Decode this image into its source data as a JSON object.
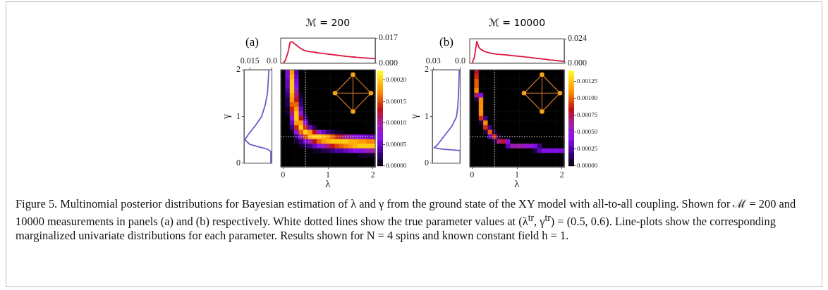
{
  "chart_data": [
    {
      "type": "line",
      "title": "ℳ = 200",
      "annotations": [
        "(a)"
      ],
      "tick_labels": "y",
      "ylim": [
        0,
        0.017
      ],
      "yticks": [
        {
          "value": 0,
          "label": "0.000"
        },
        {
          "value": 0.017,
          "label": "0.017"
        }
      ],
      "categories": [
        null,
        null,
        null,
        null,
        null,
        null,
        null,
        null,
        null,
        null,
        null,
        null,
        null,
        null,
        null,
        null,
        null,
        null,
        null,
        null,
        null,
        null,
        null,
        null,
        null,
        null,
        null,
        null,
        null,
        null,
        null,
        null,
        null,
        null,
        null,
        null,
        null,
        null,
        null,
        null,
        null
      ],
      "series": [
        {
          "color": "#e0143c",
          "values": [
            0,
            0,
            0.002,
            0.0068,
            0.0142,
            0.0145,
            0.013,
            0.0118,
            0.0105,
            0.0095,
            0.0087,
            0.0083,
            0.008,
            0.0077,
            0.0075,
            0.0073,
            0.007,
            0.0068,
            0.0066,
            0.0064,
            0.0062,
            0.006,
            0.0058,
            0.0056,
            0.0054,
            0.0052,
            0.005,
            0.0048,
            0.0046,
            0.0045,
            0.0043,
            0.0042,
            0.004,
            0.0039,
            0.0038,
            0.0036,
            0.0035,
            0.0034,
            0.0033,
            0.0032,
            0.0031
          ]
        }
      ]
    },
    {
      "type": "line",
      "ylabel": "γ",
      "xlim": [
        0.019,
        0
      ],
      "xticks": [
        {
          "value": 0.015,
          "label": "0.015"
        },
        {
          "value": 0,
          "label": "0.0"
        }
      ],
      "ylim": [
        0,
        2
      ],
      "yticks": [
        0,
        1,
        2
      ],
      "series": [
        {
          "color": "#6a5acd",
          "x": [
            0.0003,
            0.0007,
            0.003,
            0.009,
            0.015,
            0.0183,
            0.0164,
            0.0114,
            0.007,
            0.0045,
            0.003,
            0.002
          ],
          "values": [
            0,
            0.25,
            0.3,
            0.35,
            0.4,
            0.5,
            0.6,
            0.8,
            1,
            1.25,
            1.5,
            2
          ]
        }
      ]
    },
    {
      "type": "heatmap",
      "xlabel": "λ",
      "tick_labels": "x",
      "clim": [
        0,
        0.000222
      ],
      "cticks": [
        {
          "value": 0,
          "label": "0.00000"
        },
        {
          "value": 5e-05,
          "label": "0.00005"
        },
        {
          "value": 0.0001,
          "label": "0.00010"
        },
        {
          "value": 0.00015,
          "label": "0.00015"
        },
        {
          "value": 0.0002,
          "label": "0.00020"
        }
      ],
      "categories": [
        "0",
        null,
        null,
        null,
        null,
        null,
        null,
        null,
        null,
        null,
        "1",
        null,
        null,
        null,
        null,
        null,
        null,
        null,
        null,
        null,
        "2"
      ],
      "y_categories": [
        null,
        null,
        null,
        null,
        null,
        null,
        null,
        null,
        null,
        null,
        null,
        null,
        null,
        null,
        null,
        null,
        null,
        null,
        null,
        null,
        null
      ],
      "cells": [
        [
          0,
          6e-05,
          0.00018,
          4e-05,
          0,
          0,
          0,
          0,
          0,
          0,
          0,
          0,
          0,
          0,
          0,
          0,
          0,
          0,
          0,
          0,
          0
        ],
        [
          0,
          6e-05,
          0.00019,
          5e-05,
          0,
          0,
          0,
          0,
          0,
          0,
          0,
          0,
          0,
          0,
          0,
          0,
          0,
          0,
          0,
          0,
          0
        ],
        [
          0,
          5e-05,
          0.0002,
          6e-05,
          0,
          0,
          0,
          0,
          0,
          0,
          0,
          0,
          0,
          0,
          0,
          0,
          0,
          0,
          0,
          0,
          0
        ],
        [
          0,
          5e-05,
          0.0002,
          7e-05,
          0,
          0,
          0,
          0,
          0,
          0,
          0,
          0,
          0,
          0,
          0,
          0,
          0,
          0,
          0,
          0,
          0
        ],
        [
          0,
          4e-05,
          0.0002,
          9e-05,
          0,
          0,
          0,
          0,
          0,
          0,
          0,
          0,
          0,
          0,
          0,
          0,
          0,
          0,
          0,
          0,
          0
        ],
        [
          0,
          3e-05,
          0.00019,
          0.00011,
          1e-05,
          0,
          0,
          0,
          0,
          0,
          0,
          0,
          0,
          0,
          0,
          0,
          0,
          0,
          0,
          0,
          0
        ],
        [
          0,
          2e-05,
          0.00018,
          0.00013,
          2e-05,
          0,
          0,
          0,
          0,
          0,
          0,
          0,
          0,
          0,
          0,
          0,
          0,
          0,
          0,
          0,
          0
        ],
        [
          0,
          2e-05,
          0.00016,
          0.00016,
          3e-05,
          0,
          0,
          0,
          0,
          0,
          0,
          0,
          0,
          0,
          0,
          0,
          0,
          0,
          0,
          0,
          0
        ],
        [
          0,
          1e-05,
          0.00014,
          0.00018,
          5e-05,
          0,
          0,
          0,
          0,
          0,
          0,
          0,
          0,
          0,
          0,
          0,
          0,
          0,
          0,
          0,
          0
        ],
        [
          0,
          1e-05,
          0.00011,
          0.0002,
          8e-05,
          1e-05,
          0,
          0,
          0,
          0,
          0,
          0,
          0,
          0,
          0,
          0,
          0,
          0,
          0,
          0,
          0
        ],
        [
          0,
          0,
          8e-05,
          0.0002,
          0.00013,
          3e-05,
          0,
          0,
          0,
          0,
          0,
          0,
          0,
          0,
          0,
          0,
          0,
          0,
          0,
          0,
          0
        ],
        [
          0,
          0,
          5e-05,
          0.00018,
          0.00018,
          7e-05,
          1e-05,
          0,
          0,
          0,
          0,
          0,
          0,
          0,
          0,
          0,
          0,
          0,
          0,
          0,
          0
        ],
        [
          0,
          0,
          3e-05,
          0.00014,
          0.0002,
          0.00014,
          5e-05,
          2e-05,
          0,
          0,
          0,
          0,
          0,
          0,
          0,
          0,
          0,
          0,
          0,
          0,
          0
        ],
        [
          0,
          0,
          1e-05,
          8e-05,
          0.00016,
          0.0002,
          0.00018,
          0.00013,
          8e-05,
          5e-05,
          3e-05,
          2e-05,
          1e-05,
          1e-05,
          0,
          0,
          0,
          0,
          0,
          0,
          0
        ],
        [
          0,
          0,
          0,
          3e-05,
          9e-05,
          0.00015,
          0.00019,
          0.0002,
          0.0002,
          0.00019,
          0.00018,
          0.00016,
          0.00014,
          0.00012,
          0.0001,
          9e-05,
          8e-05,
          7e-05,
          6e-05,
          5e-05,
          5e-05
        ],
        [
          0,
          0,
          0,
          1e-05,
          3e-05,
          6e-05,
          0.0001,
          0.00013,
          0.00016,
          0.00018,
          0.00019,
          0.0002,
          0.0002,
          0.0002,
          0.0002,
          0.00019,
          0.00019,
          0.00018,
          0.00018,
          0.00017,
          0.00017
        ],
        [
          0,
          0,
          0,
          0,
          1e-05,
          2e-05,
          3e-05,
          5e-05,
          7e-05,
          9e-05,
          0.00011,
          0.00013,
          0.00015,
          0.00016,
          0.00017,
          0.00018,
          0.00019,
          0.0002,
          0.0002,
          0.0002,
          0.0002
        ],
        [
          0,
          0,
          0,
          0,
          0,
          0,
          0,
          1e-05,
          1e-05,
          2e-05,
          2e-05,
          3e-05,
          4e-05,
          4e-05,
          5e-05,
          6e-05,
          7e-05,
          7e-05,
          8e-05,
          9e-05,
          0.0001
        ],
        [
          0,
          0,
          0,
          0,
          0,
          0,
          0,
          0,
          0,
          0,
          0,
          0,
          0,
          0,
          0,
          0,
          0,
          1e-05,
          1e-05,
          1e-05,
          1e-05
        ],
        [
          0,
          0,
          0,
          0,
          0,
          0,
          0,
          0,
          0,
          0,
          0,
          0,
          0,
          0,
          0,
          0,
          0,
          0,
          0,
          0,
          0
        ],
        [
          0,
          0,
          0,
          0,
          0,
          0,
          0,
          0,
          0,
          0,
          0,
          0,
          0,
          0,
          0,
          0,
          0,
          0,
          0,
          0,
          0
        ]
      ]
    },
    {
      "type": "line",
      "title": "ℳ = 10000",
      "annotations": [
        "(b)"
      ],
      "tick_labels": "y",
      "ylim": [
        0,
        0.024
      ],
      "yticks": [
        {
          "value": 0,
          "label": "0.000"
        },
        {
          "value": 0.024,
          "label": "0.024"
        }
      ],
      "categories": [
        null,
        null,
        null,
        null,
        null,
        null,
        null,
        null,
        null,
        null,
        null,
        null,
        null,
        null,
        null,
        null,
        null,
        null,
        null,
        null,
        null,
        null,
        null,
        null,
        null,
        null,
        null,
        null,
        null,
        null,
        null,
        null,
        null,
        null,
        null,
        null,
        null,
        null,
        null,
        null,
        null
      ],
      "series": [
        {
          "color": "#e0143c",
          "values": [
            0,
            0,
            0.006,
            0.0215,
            0.0151,
            0.0133,
            0.0119,
            0.0111,
            0.0104,
            0.0099,
            0.0094,
            0.0091,
            0.0088,
            0.0086,
            0.0084,
            0.0082,
            0.008,
            0.0078,
            0.0075,
            0.0073,
            0.0071,
            0.0068,
            0.0066,
            0.0063,
            0.006,
            0.0058,
            0.0055,
            0.0052,
            0.0049,
            0.0047,
            0.0044,
            0.0041,
            0.0039,
            0.0036,
            0.0033,
            0.0031,
            0.0028,
            0.0026,
            0.0023,
            0.0021,
            0.0018
          ]
        }
      ]
    },
    {
      "type": "line",
      "ylabel": "γ",
      "xlim": [
        0.031,
        0
      ],
      "xticks": [
        {
          "value": 0.03,
          "label": "0.03"
        },
        {
          "value": 0,
          "label": "0.0"
        }
      ],
      "ylim": [
        0,
        2
      ],
      "yticks": [
        0,
        1,
        2
      ],
      "series": [
        {
          "color": "#6a5acd",
          "x": [
            0,
            0,
            0.02,
            0.029,
            0.025,
            0.017,
            0.009,
            0.004,
            0.0025,
            0.0018,
            0.001
          ],
          "values": [
            0,
            0.27,
            0.3,
            0.33,
            0.4,
            0.6,
            0.8,
            1,
            1.25,
            1.5,
            2
          ]
        }
      ]
    },
    {
      "type": "heatmap",
      "xlabel": "λ",
      "tick_labels": "x",
      "clim": [
        0,
        0.00141
      ],
      "cticks": [
        {
          "value": 0,
          "label": "0.00000"
        },
        {
          "value": 0.00025,
          "label": "0.00025"
        },
        {
          "value": 0.0005,
          "label": "0.00050"
        },
        {
          "value": 0.00075,
          "label": "0.00075"
        },
        {
          "value": 0.001,
          "label": "0.00100"
        },
        {
          "value": 0.00125,
          "label": "0.00125"
        }
      ],
      "categories": [
        "0",
        null,
        null,
        null,
        null,
        null,
        null,
        null,
        null,
        null,
        "1",
        null,
        null,
        null,
        null,
        null,
        null,
        null,
        null,
        null,
        "2"
      ],
      "y_categories": [
        null,
        null,
        null,
        null,
        null,
        null,
        null,
        null,
        null,
        null,
        null,
        null,
        null,
        null,
        null,
        null,
        null,
        null,
        null,
        null,
        null
      ],
      "cells": [
        [
          0,
          0.0008,
          0,
          0,
          0,
          0,
          0,
          0,
          0,
          0,
          0,
          0,
          0,
          0,
          0,
          0,
          0,
          0,
          0,
          0,
          0
        ],
        [
          0,
          0.0009,
          0,
          0,
          0,
          0,
          0,
          0,
          0,
          0,
          0,
          0,
          0,
          0,
          0,
          0,
          0,
          0,
          0,
          0,
          0
        ],
        [
          0,
          0.001,
          0,
          0,
          0,
          0,
          0,
          0,
          0,
          0,
          0,
          0,
          0,
          0,
          0,
          0,
          0,
          0,
          0,
          0,
          0
        ],
        [
          0,
          0.001,
          0,
          0,
          0,
          0,
          0,
          0,
          0,
          0,
          0,
          0,
          0,
          0,
          0,
          0,
          0,
          0,
          0,
          0,
          0
        ],
        [
          0,
          0.0011,
          0,
          0,
          0,
          0,
          0,
          0,
          0,
          0,
          0,
          0,
          0,
          0,
          0,
          0,
          0,
          0,
          0,
          0,
          0
        ],
        [
          0,
          0.0007,
          0.0004,
          0,
          0,
          0,
          0,
          0,
          0,
          0,
          0,
          0,
          0,
          0,
          0,
          0,
          0,
          0,
          0,
          0,
          0
        ],
        [
          0,
          0.0001,
          0.0011,
          0,
          0,
          0,
          0,
          0,
          0,
          0,
          0,
          0,
          0,
          0,
          0,
          0,
          0,
          0,
          0,
          0,
          0
        ],
        [
          0,
          0,
          0.0011,
          0,
          0,
          0,
          0,
          0,
          0,
          0,
          0,
          0,
          0,
          0,
          0,
          0,
          0,
          0,
          0,
          0,
          0
        ],
        [
          0,
          0,
          0.0011,
          0,
          0,
          0,
          0,
          0,
          0,
          0,
          0,
          0,
          0,
          0,
          0,
          0,
          0,
          0,
          0,
          0,
          0
        ],
        [
          0,
          0,
          0.0011,
          0,
          0,
          0,
          0,
          0,
          0,
          0,
          0,
          0,
          0,
          0,
          0,
          0,
          0,
          0,
          0,
          0,
          0
        ],
        [
          0,
          0,
          0.0009,
          0.0002,
          0,
          0,
          0,
          0,
          0,
          0,
          0,
          0,
          0,
          0,
          0,
          0,
          0,
          0,
          0,
          0,
          0
        ],
        [
          0,
          0,
          0.0001,
          0.0011,
          0,
          0,
          0,
          0,
          0,
          0,
          0,
          0,
          0,
          0,
          0,
          0,
          0,
          0,
          0,
          0,
          0
        ],
        [
          0,
          0,
          0,
          0.0009,
          0.0002,
          0,
          0,
          0,
          0,
          0,
          0,
          0,
          0,
          0,
          0,
          0,
          0,
          0,
          0,
          0,
          0
        ],
        [
          0,
          0,
          0,
          0.0001,
          0.001,
          0.0001,
          0,
          0,
          0,
          0,
          0,
          0,
          0,
          0,
          0,
          0,
          0,
          0,
          0,
          0,
          0
        ],
        [
          0,
          0,
          0,
          0,
          0.0003,
          0.0009,
          0.0001,
          0,
          0,
          0,
          0,
          0,
          0,
          0,
          0,
          0,
          0,
          0,
          0,
          0,
          0
        ],
        [
          0,
          0,
          0,
          0,
          0,
          0.0001,
          0.0007,
          0.0008,
          0.0004,
          0,
          0,
          0,
          0,
          0,
          0,
          0,
          0,
          0,
          0,
          0,
          0
        ],
        [
          0,
          0,
          0,
          0,
          0,
          0,
          0,
          0,
          0.0003,
          0.0006,
          0.0006,
          0.0006,
          0.0005,
          0.0005,
          0.0004,
          0.0002,
          0,
          0,
          0,
          0,
          0
        ],
        [
          0,
          0,
          0,
          0,
          0,
          0,
          0,
          0,
          0,
          0,
          0,
          0,
          0,
          0,
          0.0001,
          0.0003,
          0.0004,
          0.0004,
          0.0004,
          0.0004,
          0.0004
        ],
        [
          0,
          0,
          0,
          0,
          0,
          0,
          0,
          0,
          0,
          0,
          0,
          0,
          0,
          0,
          0,
          0,
          0,
          0,
          0,
          0,
          0
        ],
        [
          0,
          0,
          0,
          0,
          0,
          0,
          0,
          0,
          0,
          0,
          0,
          0,
          0,
          0,
          0,
          0,
          0,
          0,
          0,
          0,
          0
        ],
        [
          0,
          0,
          0,
          0,
          0,
          0,
          0,
          0,
          0,
          0,
          0,
          0,
          0,
          0,
          0,
          0,
          0,
          0,
          0,
          0,
          0
        ]
      ]
    },
    {
      "type": "other",
      "annotations": [
        "Figure 5. Multinomial posterior distributions for Bayesian estimation of λ and γ from the ground state of the XY model with all-to-all coupling. Shown for ℳ = 200 and 10000 measurements in panels (a) and (b) respectively. White dotted lines show the true parameter values at (λ$^{tr}$, γ$^{tr}$) = (0.5, 0.6). Line-plots show the corresponding marginalized univariate distributions for each parameter. Results shown for N = 4 spins and known constant field h = 1."
      ]
    }
  ]
}
